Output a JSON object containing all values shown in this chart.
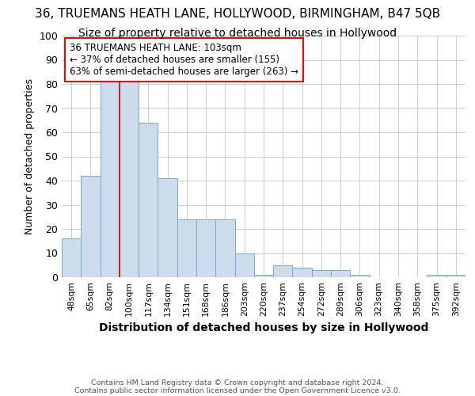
{
  "title": "36, TRUEMANS HEATH LANE, HOLLYWOOD, BIRMINGHAM, B47 5QB",
  "subtitle": "Size of property relative to detached houses in Hollywood",
  "xlabel": "Distribution of detached houses by size in Hollywood",
  "ylabel": "Number of detached properties",
  "footnote1": "Contains HM Land Registry data © Crown copyright and database right 2024.",
  "footnote2": "Contains public sector information licensed under the Open Government Licence v3.0.",
  "categories": [
    "48sqm",
    "65sqm",
    "82sqm",
    "100sqm",
    "117sqm",
    "134sqm",
    "151sqm",
    "168sqm",
    "186sqm",
    "203sqm",
    "220sqm",
    "237sqm",
    "254sqm",
    "272sqm",
    "289sqm",
    "306sqm",
    "323sqm",
    "340sqm",
    "358sqm",
    "375sqm",
    "392sqm"
  ],
  "values": [
    16,
    42,
    81,
    82,
    64,
    41,
    24,
    24,
    24,
    10,
    1,
    5,
    4,
    3,
    3,
    1,
    0,
    0,
    0,
    1,
    1
  ],
  "bar_color": "#ccdcec",
  "bar_edge_color": "#7aaac8",
  "vline_color": "#cc0000",
  "vline_index": 3,
  "annotation_text": "36 TRUEMANS HEATH LANE: 103sqm\n← 37% of detached houses are smaller (155)\n63% of semi-detached houses are larger (263) →",
  "annotation_box_color": "white",
  "annotation_box_edge_color": "red",
  "ylim": [
    0,
    100
  ],
  "background_color": "white",
  "grid_color": "#cccccc",
  "title_fontsize": 11,
  "subtitle_fontsize": 10
}
